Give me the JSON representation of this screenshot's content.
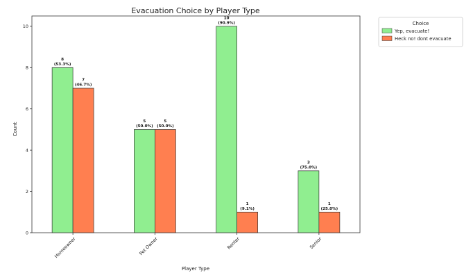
{
  "chart_data": {
    "type": "bar",
    "title": "Evacuation Choice by Player Type",
    "xlabel": "Player Type",
    "ylabel": "Count",
    "categories": [
      "Homeowner",
      "Pet Owner",
      "Renter",
      "Senior"
    ],
    "ylim": [
      0,
      10.5
    ],
    "yticks": [
      0,
      2,
      4,
      6,
      8,
      10
    ],
    "grid": false,
    "legend": {
      "title": "Choice",
      "placement": "outside-right-top"
    },
    "series": [
      {
        "name": "Yep, evacuate!",
        "color": "#90EE90",
        "values": [
          8,
          5,
          10,
          3
        ],
        "labels": [
          "8\n(53.3%)",
          "5\n(50.0%)",
          "10\n(90.9%)",
          "3\n(75.0%)"
        ]
      },
      {
        "name": "Heck no! dont evacuate",
        "color": "#FF7F50",
        "values": [
          7,
          5,
          1,
          1
        ],
        "labels": [
          "7\n(46.7%)",
          "5\n(50.0%)",
          "1\n(9.1%)",
          "1\n(25.0%)"
        ]
      }
    ]
  }
}
